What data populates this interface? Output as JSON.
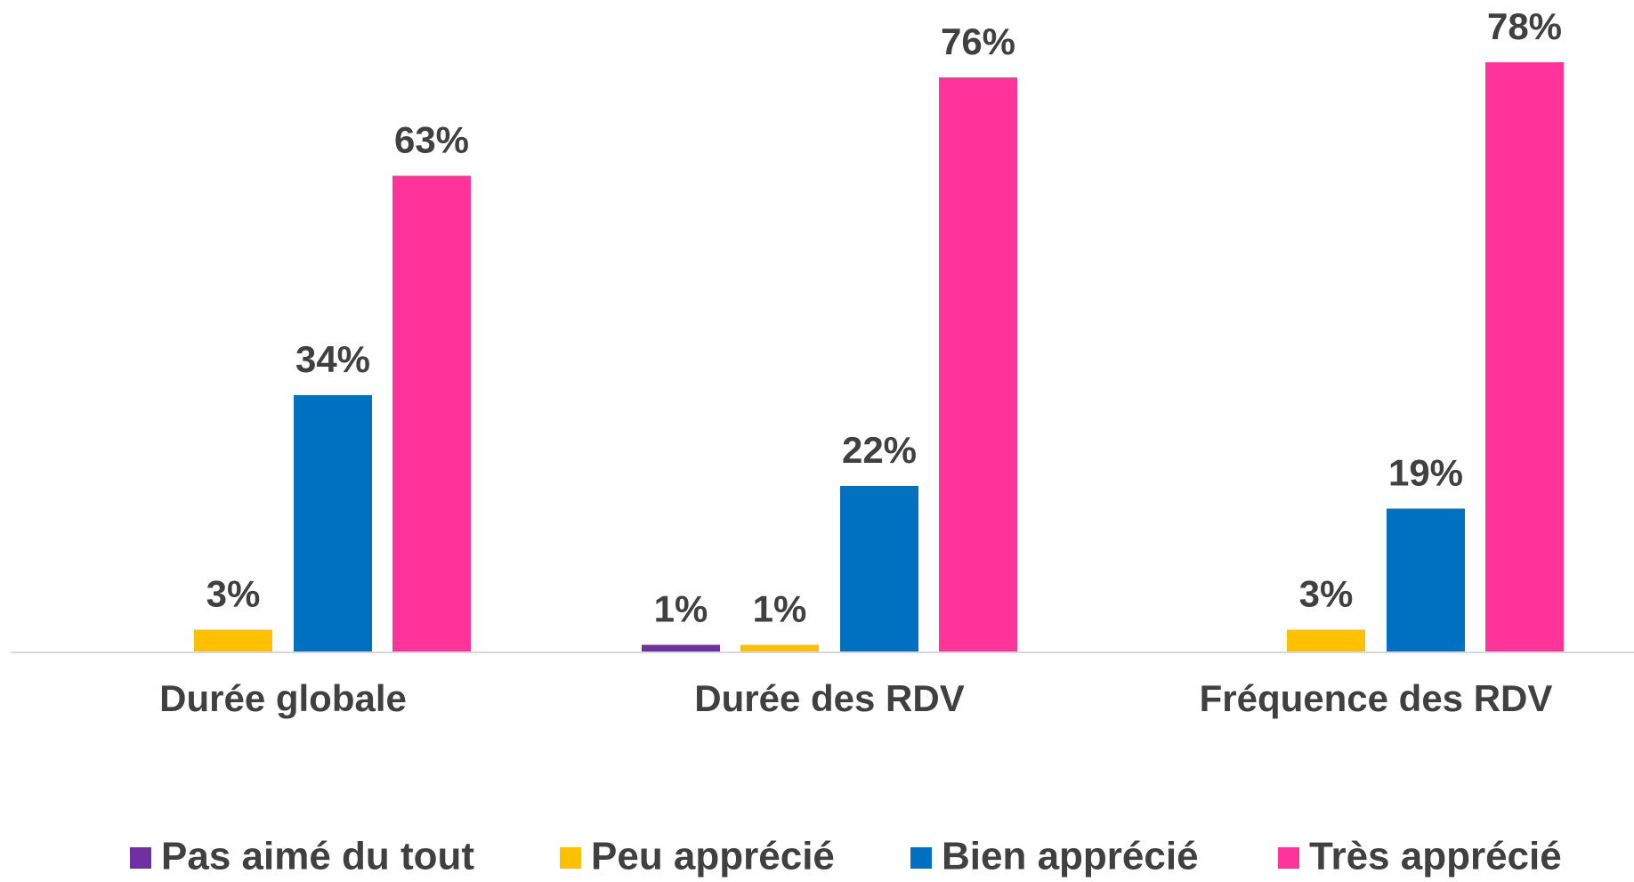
{
  "chart_data": {
    "type": "bar",
    "categories": [
      "Durée globale",
      "Durée des RDV",
      "Fréquence des RDV"
    ],
    "series": [
      {
        "name": "Pas aimé du tout",
        "color": "#7030a0",
        "values": [
          null,
          1,
          null
        ],
        "value_labels": [
          null,
          "1%",
          null
        ]
      },
      {
        "name": "Peu apprécié",
        "color": "#ffc000",
        "values": [
          3,
          1,
          3
        ],
        "value_labels": [
          "3%",
          "1%",
          "3%"
        ]
      },
      {
        "name": "Bien apprécié",
        "color": "#0070c0",
        "values": [
          34,
          22,
          19
        ],
        "value_labels": [
          "34%",
          "22%",
          "19%"
        ]
      },
      {
        "name": "Très apprécié",
        "color": "#ff3399",
        "values": [
          63,
          76,
          78
        ],
        "value_labels": [
          "63%",
          "76%",
          "78%"
        ]
      }
    ],
    "ylim": [
      0,
      80
    ],
    "legend": "bottom"
  }
}
